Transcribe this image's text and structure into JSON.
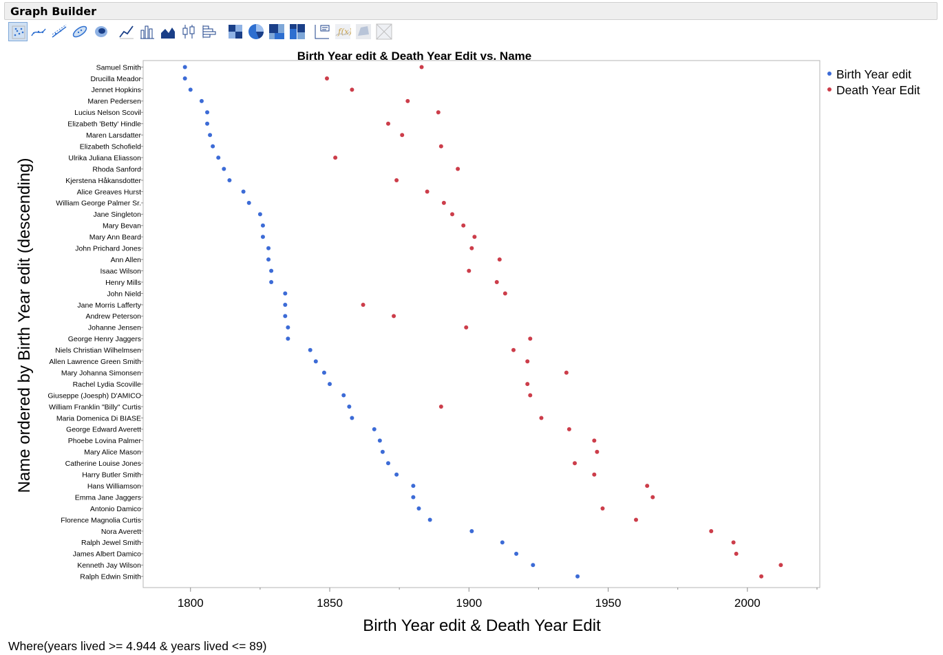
{
  "app": {
    "title": "Graph Builder"
  },
  "toolbar": {
    "icons": [
      {
        "name": "points-icon",
        "selected": true
      },
      {
        "name": "smoother-icon"
      },
      {
        "name": "line-of-fit-icon"
      },
      {
        "name": "ellipse-icon"
      },
      {
        "name": "contour-icon"
      },
      {
        "name": "line-icon"
      },
      {
        "name": "bar-icon"
      },
      {
        "name": "area-icon"
      },
      {
        "name": "box-plot-icon"
      },
      {
        "name": "histogram-icon"
      },
      {
        "name": "heatmap-icon"
      },
      {
        "name": "pie-icon"
      },
      {
        "name": "treemap-icon"
      },
      {
        "name": "mosaic-icon"
      },
      {
        "name": "caption-box-icon"
      },
      {
        "name": "formula-icon",
        "disabled": true
      },
      {
        "name": "map-shapes-icon",
        "disabled": true
      },
      {
        "name": "grid-icon",
        "disabled": true
      }
    ]
  },
  "chart_data": {
    "type": "scatter",
    "title": "Birth Year edit & Death Year Edit vs. Name",
    "xlabel": "Birth Year edit & Death Year Edit",
    "ylabel": "Name ordered by Birth Year edit (descending)",
    "xlim": [
      1783,
      2026
    ],
    "xticks": [
      1800,
      1850,
      1900,
      1950,
      2000
    ],
    "legend_position": "right",
    "colors": {
      "birth": "#3c6bd6",
      "death": "#cc3d4a"
    },
    "categories": [
      "Samuel Smith",
      "Drucilla Meador",
      "Jennet Hopkins",
      "Maren Pedersen",
      "Lucius Nelson Scovil",
      "Elizabeth 'Betty' Hindle",
      "Maren Larsdatter",
      "Elizabeth Schofield",
      "Ulrika Juliana Eliasson",
      "Rhoda Sanford",
      "Kjerstena Håkansdotter",
      "Alice Greaves Hurst",
      "William George Palmer Sr.",
      "Jane Singleton",
      "Mary Bevan",
      "Mary Ann Beard",
      "John Prichard Jones",
      "Ann Allen",
      "Isaac Wilson",
      "Henry Mills",
      "John Nield",
      "Jane Morris Lafferty",
      "Andrew Peterson",
      "Johanne Jensen",
      "George Henry Jaggers",
      "Niels Christian Wilhelmsen",
      "Allen Lawrence Green Smith",
      "Mary Johanna Simonsen",
      "Rachel  Lydia Scoville",
      "Giuseppe (Joesph) D'AMICO",
      "William Franklin \"Billy\" Curtis",
      "Maria Domenica Di BIASE",
      "George Edward Averett",
      "Phoebe Lovina Palmer",
      "Mary Alice Mason",
      "Catherine Louise Jones",
      "Harry Butler Smith",
      "Hans Williamson",
      "Emma Jane Jaggers",
      "Antonio Damico",
      "Florence Magnolia Curtis",
      "Nora Averett",
      "Ralph Jewel Smith",
      "James Albert Damico",
      "Kenneth Jay Wilson",
      "Ralph Edwin Smith"
    ],
    "series": [
      {
        "name": "Birth Year edit",
        "values": [
          1798,
          1798,
          1800,
          1804,
          1806,
          1806,
          1807,
          1808,
          1810,
          1812,
          1814,
          1819,
          1821,
          1825,
          1826,
          1826,
          1828,
          1828,
          1829,
          1829,
          1834,
          1834,
          1834,
          1835,
          1835,
          1843,
          1845,
          1848,
          1850,
          1855,
          1857,
          1858,
          1866,
          1868,
          1869,
          1871,
          1874,
          1880,
          1880,
          1882,
          1886,
          1901,
          1912,
          1917,
          1923,
          1939
        ]
      },
      {
        "name": "Death Year Edit",
        "values": [
          1883,
          1849,
          1858,
          1878,
          1889,
          1871,
          1876,
          1890,
          1852,
          1896,
          1874,
          1885,
          1891,
          1894,
          1898,
          1902,
          1901,
          1911,
          1900,
          1910,
          1913,
          1862,
          1873,
          1899,
          1922,
          1916,
          1921,
          1935,
          1921,
          1922,
          1890,
          1926,
          1936,
          1945,
          1946,
          1938,
          1945,
          1964,
          1966,
          1948,
          1960,
          1987,
          1995,
          1996,
          2012,
          2005
        ]
      }
    ]
  },
  "footer": {
    "where_clause": "Where(years lived >= 4.944 & years lived <= 89)"
  }
}
